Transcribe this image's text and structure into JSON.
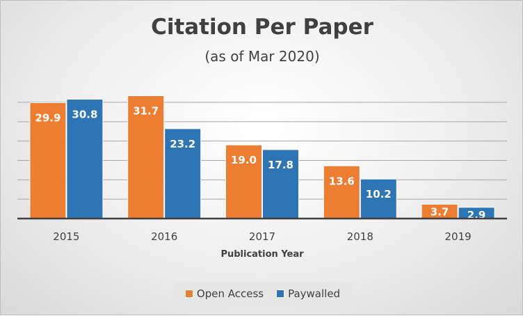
{
  "chart_data": {
    "type": "bar",
    "title": "Citation Per Paper",
    "subtitle": "(as of Mar 2020)",
    "xlabel": "Publication Year",
    "ylabel": "",
    "categories": [
      "2015",
      "2016",
      "2017",
      "2018",
      "2019"
    ],
    "series": [
      {
        "name": "Open Access",
        "color": "#ed7d31",
        "values": [
          29.9,
          31.7,
          19.0,
          13.6,
          3.7
        ]
      },
      {
        "name": "Paywalled",
        "color": "#2e75b6",
        "values": [
          30.8,
          23.2,
          17.8,
          10.2,
          2.9
        ]
      }
    ],
    "ylim": [
      0,
      30
    ],
    "gridlines": [
      5,
      10,
      15,
      20,
      25,
      30
    ],
    "grid": true,
    "legend_position": "bottom"
  }
}
